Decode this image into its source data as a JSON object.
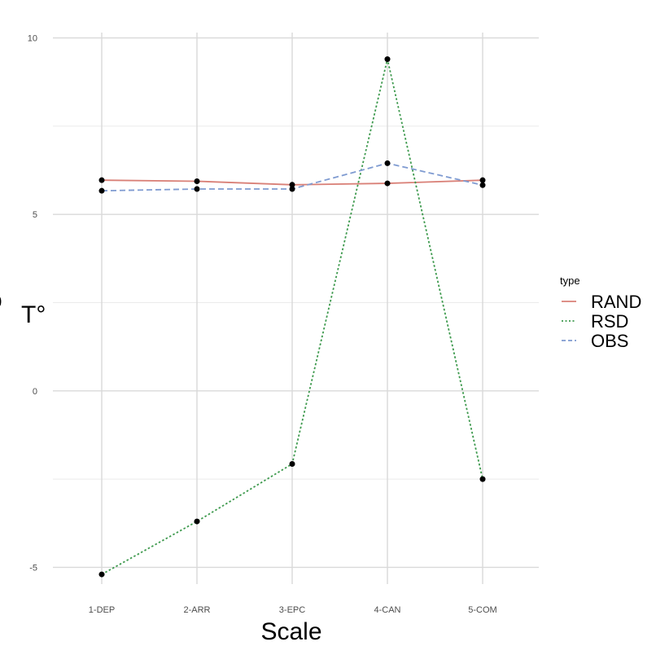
{
  "chart_data": {
    "type": "line",
    "title": "",
    "xlabel": "Scale",
    "ylabel": "T°",
    "ylabel_prefix": "o",
    "categories": [
      "1-DEP",
      "2-ARR",
      "3-EPC",
      "4-CAN",
      "5-COM"
    ],
    "ylim": [
      -5.5,
      10.1
    ],
    "yticks": [
      -5,
      0,
      5,
      10
    ],
    "grid": true,
    "legend": {
      "title": "type",
      "placement": "right"
    },
    "series": [
      {
        "name": "RAND",
        "color": "#D98077",
        "dash": "solid",
        "values": [
          5.97,
          5.94,
          5.84,
          5.88,
          5.97
        ]
      },
      {
        "name": "RSD",
        "color": "#3E9A4E",
        "dash": "dotted",
        "values": [
          -5.2,
          -3.7,
          -2.07,
          9.4,
          -2.5
        ]
      },
      {
        "name": "OBS",
        "color": "#7F9BD1",
        "dash": "dashed",
        "values": [
          5.67,
          5.72,
          5.72,
          6.45,
          5.83
        ]
      }
    ]
  }
}
